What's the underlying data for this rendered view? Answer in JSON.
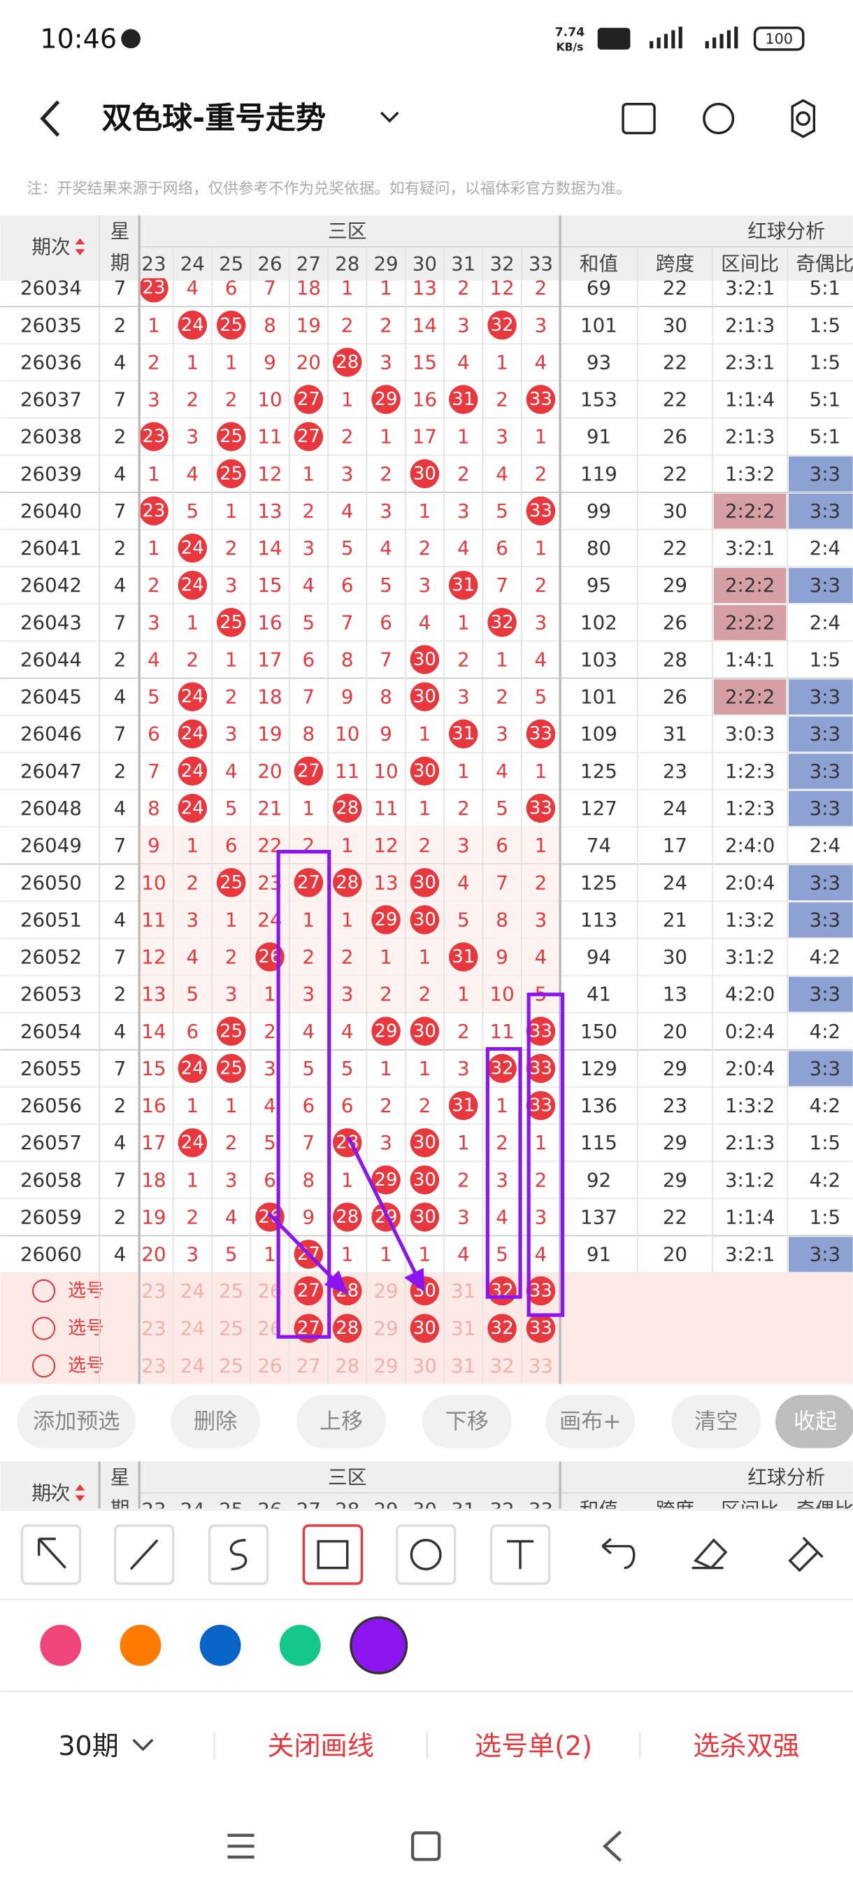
{
  "status": {
    "time": "10:46",
    "speed": "7.74",
    "speed_unit": "KB/s",
    "battery": "100"
  },
  "header": {
    "title": "双色球-重号走势",
    "note": "注：开奖结果来源于网络，仅供参考不作为兑奖依据。如有疑问，以福体彩官方数据为准。"
  },
  "table": {
    "period_head": "期次",
    "weekday_head": [
      "星",
      "期"
    ],
    "zone_head": "三区",
    "analysis_head": "红球分析",
    "columns": [
      "23",
      "24",
      "25",
      "26",
      "27",
      "28",
      "29",
      "30",
      "31",
      "32",
      "33"
    ],
    "analysis_columns": [
      "和值",
      "跨度",
      "区间比",
      "奇偶比"
    ],
    "rows": [
      [
        "26034",
        "7",
        "23",
        "4",
        "6",
        "7",
        "18",
        "1",
        "1",
        "13",
        "2",
        "12",
        "2",
        "69",
        "22",
        "3:2:1",
        "5:1"
      ],
      [
        "26035",
        "2",
        "1",
        "24",
        "25",
        "8",
        "19",
        "2",
        "2",
        "14",
        "3",
        "32",
        "3",
        "101",
        "30",
        "2:1:3",
        "1:5"
      ],
      [
        "26036",
        "4",
        "2",
        "1",
        "1",
        "9",
        "20",
        "28",
        "3",
        "15",
        "4",
        "1",
        "4",
        "93",
        "22",
        "2:3:1",
        "1:5"
      ],
      [
        "26037",
        "7",
        "3",
        "2",
        "2",
        "10",
        "27",
        "1",
        "29",
        "16",
        "31",
        "2",
        "33",
        "153",
        "22",
        "1:1:4",
        "5:1"
      ],
      [
        "26038",
        "2",
        "23",
        "3",
        "25",
        "11",
        "27",
        "2",
        "1",
        "17",
        "1",
        "3",
        "1",
        "91",
        "26",
        "2:1:3",
        "5:1"
      ],
      [
        "26039",
        "4",
        "1",
        "4",
        "25",
        "12",
        "1",
        "3",
        "2",
        "30",
        "2",
        "4",
        "2",
        "119",
        "22",
        "1:3:2",
        "3:3"
      ],
      [
        "26040",
        "7",
        "23",
        "5",
        "1",
        "13",
        "2",
        "4",
        "3",
        "1",
        "3",
        "5",
        "33",
        "99",
        "30",
        "2:2:2",
        "3:3"
      ],
      [
        "26041",
        "2",
        "1",
        "24",
        "2",
        "14",
        "3",
        "5",
        "4",
        "2",
        "4",
        "6",
        "1",
        "80",
        "22",
        "3:2:1",
        "2:4"
      ],
      [
        "26042",
        "4",
        "2",
        "24",
        "3",
        "15",
        "4",
        "6",
        "5",
        "3",
        "31",
        "7",
        "2",
        "95",
        "29",
        "2:2:2",
        "3:3"
      ],
      [
        "26043",
        "7",
        "3",
        "1",
        "25",
        "16",
        "5",
        "7",
        "6",
        "4",
        "1",
        "32",
        "3",
        "102",
        "26",
        "2:2:2",
        "2:4"
      ],
      [
        "26044",
        "2",
        "4",
        "2",
        "1",
        "17",
        "6",
        "8",
        "7",
        "30",
        "2",
        "1",
        "4",
        "103",
        "28",
        "1:4:1",
        "1:5"
      ],
      [
        "26045",
        "4",
        "5",
        "24",
        "2",
        "18",
        "7",
        "9",
        "8",
        "30",
        "3",
        "2",
        "5",
        "101",
        "26",
        "2:2:2",
        "3:3"
      ],
      [
        "26046",
        "7",
        "6",
        "24",
        "3",
        "19",
        "8",
        "10",
        "9",
        "1",
        "31",
        "3",
        "33",
        "109",
        "31",
        "3:0:3",
        "3:3"
      ],
      [
        "26047",
        "2",
        "7",
        "24",
        "4",
        "20",
        "27",
        "11",
        "10",
        "30",
        "1",
        "4",
        "1",
        "125",
        "23",
        "1:2:3",
        "3:3"
      ],
      [
        "26048",
        "4",
        "8",
        "24",
        "5",
        "21",
        "1",
        "28",
        "11",
        "1",
        "2",
        "5",
        "33",
        "127",
        "24",
        "1:2:3",
        "3:3"
      ],
      [
        "26049",
        "7",
        "9",
        "1",
        "6",
        "22",
        "2",
        "1",
        "12",
        "2",
        "3",
        "6",
        "1",
        "74",
        "17",
        "2:4:0",
        "2:4"
      ],
      [
        "26050",
        "2",
        "10",
        "2",
        "25",
        "23",
        "27",
        "28",
        "13",
        "30",
        "4",
        "7",
        "2",
        "125",
        "24",
        "2:0:4",
        "3:3"
      ],
      [
        "26051",
        "4",
        "11",
        "3",
        "1",
        "24",
        "1",
        "1",
        "29",
        "30",
        "5",
        "8",
        "3",
        "113",
        "21",
        "1:3:2",
        "3:3"
      ],
      [
        "26052",
        "7",
        "12",
        "4",
        "2",
        "26",
        "2",
        "2",
        "1",
        "1",
        "31",
        "9",
        "4",
        "94",
        "30",
        "3:1:2",
        "4:2"
      ],
      [
        "26053",
        "2",
        "13",
        "5",
        "3",
        "1",
        "3",
        "3",
        "2",
        "2",
        "1",
        "10",
        "5",
        "41",
        "13",
        "4:2:0",
        "3:3"
      ],
      [
        "26054",
        "4",
        "14",
        "6",
        "25",
        "2",
        "4",
        "4",
        "29",
        "30",
        "2",
        "11",
        "33",
        "150",
        "20",
        "0:2:4",
        "4:2"
      ],
      [
        "26055",
        "7",
        "15",
        "24",
        "25",
        "3",
        "5",
        "5",
        "1",
        "1",
        "3",
        "32",
        "33",
        "129",
        "29",
        "2:0:4",
        "3:3"
      ],
      [
        "26056",
        "2",
        "16",
        "1",
        "1",
        "4",
        "6",
        "6",
        "2",
        "2",
        "31",
        "1",
        "33",
        "136",
        "23",
        "1:3:2",
        "4:2"
      ],
      [
        "26057",
        "4",
        "17",
        "24",
        "2",
        "5",
        "7",
        "28",
        "3",
        "30",
        "1",
        "2",
        "1",
        "115",
        "29",
        "2:1:3",
        "1:5"
      ],
      [
        "26058",
        "7",
        "18",
        "1",
        "3",
        "6",
        "8",
        "1",
        "29",
        "30",
        "2",
        "3",
        "2",
        "92",
        "29",
        "3:1:2",
        "4:2"
      ],
      [
        "26059",
        "2",
        "19",
        "2",
        "4",
        "26",
        "9",
        "28",
        "29",
        "30",
        "3",
        "4",
        "3",
        "137",
        "22",
        "1:1:4",
        "1:5"
      ],
      [
        "26060",
        "4",
        "20",
        "3",
        "5",
        "1",
        "27",
        "1",
        "1",
        "1",
        "4",
        "5",
        "4",
        "91",
        "20",
        "3:2:1",
        "3:3"
      ]
    ]
  },
  "picks": {
    "label": "选号",
    "rows": [
      {
        "picked": [
          false,
          false,
          false,
          false,
          true,
          true,
          false,
          true,
          false,
          true,
          true
        ]
      },
      {
        "picked": [
          false,
          false,
          false,
          false,
          true,
          true,
          false,
          true,
          false,
          true,
          true
        ]
      },
      {
        "picked": [
          false,
          false,
          false,
          false,
          false,
          false,
          false,
          false,
          false,
          false,
          false
        ]
      }
    ]
  },
  "toolbar": [
    "添加预选",
    "删除",
    "上移",
    "下移",
    "画布+",
    "清空",
    "收起"
  ],
  "palette": {
    "colors": [
      "#f0457a",
      "#ff7a00",
      "#0a64c8",
      "#14c88c",
      "#8c14f0"
    ],
    "selected": 4
  },
  "bottom": {
    "period": "30期",
    "actions": [
      "关闭画线",
      "选号单(2)",
      "选杀双强"
    ]
  }
}
